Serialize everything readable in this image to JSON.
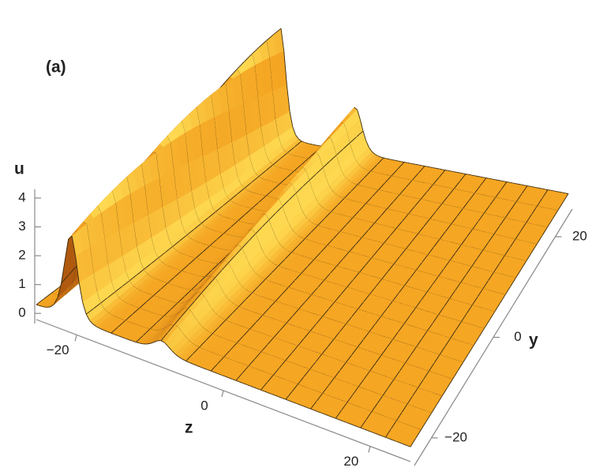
{
  "chart_data": {
    "type": "surface3d",
    "panel_label": "(a)",
    "xlabel": "z",
    "ylabel": "y",
    "zlabel": "u",
    "xlim": [
      -25.5,
      25.5
    ],
    "ylim": [
      -25.5,
      25.5
    ],
    "zlim": [
      -0.35,
      4.3
    ],
    "xticks": [
      {
        "value": -20,
        "label": "−20"
      },
      0,
      20
    ],
    "yticks": [
      {
        "value": -20,
        "label": "−20"
      },
      0,
      20
    ],
    "zticks": [
      0,
      1,
      2,
      3,
      4
    ],
    "color": "#f5a623",
    "mesh": true
  }
}
